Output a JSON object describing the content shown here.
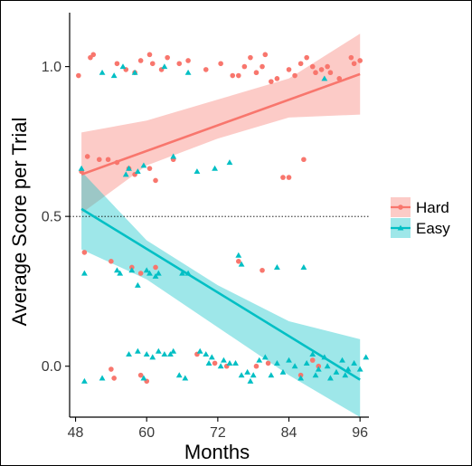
{
  "chart_data": {
    "type": "scatter",
    "xlabel": "Months",
    "ylabel": "Average Score per Trial",
    "xlim": [
      47,
      97.5
    ],
    "ylim": [
      -0.17,
      1.18
    ],
    "xticks": [
      48,
      60,
      72,
      84,
      96
    ],
    "xtick_labels": [
      "48",
      "60",
      "72",
      "84",
      "96"
    ],
    "yticks": [
      0.0,
      0.5,
      1.0
    ],
    "ytick_labels": [
      "0.0",
      "0.5",
      "1.0"
    ],
    "reference_line": {
      "y": 0.5,
      "style": "dotted"
    },
    "grid": false,
    "legend": {
      "position": "right"
    },
    "series": [
      {
        "name": "Hard",
        "color": "#F8766D",
        "band_color": "#F8766D",
        "marker": "circle",
        "fit": {
          "x": [
            49,
            96
          ],
          "y": [
            0.64,
            0.975
          ]
        },
        "band": {
          "x": [
            49,
            60,
            72,
            84,
            96
          ],
          "upper": [
            0.78,
            0.82,
            0.89,
            0.96,
            1.11
          ],
          "lower": [
            0.51,
            0.67,
            0.76,
            0.83,
            0.84
          ]
        },
        "points": [
          [
            48.5,
            0.97
          ],
          [
            50.5,
            1.03
          ],
          [
            51.0,
            1.04
          ],
          [
            55.0,
            1.01
          ],
          [
            56.5,
            0.99
          ],
          [
            58.0,
            0.98
          ],
          [
            59.0,
            1.02
          ],
          [
            60.5,
            1.04
          ],
          [
            61.0,
            1.01
          ],
          [
            62.5,
            0.99
          ],
          [
            63.5,
            1.03
          ],
          [
            65.5,
            1.01
          ],
          [
            67.0,
            1.02
          ],
          [
            70.0,
            0.99
          ],
          [
            72.5,
            1.01
          ],
          [
            74.5,
            0.97
          ],
          [
            75.5,
            0.97
          ],
          [
            76.5,
            1.0
          ],
          [
            77.5,
            1.03
          ],
          [
            78.5,
            0.98
          ],
          [
            79.5,
            1.0
          ],
          [
            80.0,
            1.04
          ],
          [
            81.0,
            0.95
          ],
          [
            82.0,
            0.96
          ],
          [
            84.0,
            0.99
          ],
          [
            85.0,
            0.97
          ],
          [
            86.0,
            1.01
          ],
          [
            87.0,
            1.03
          ],
          [
            88.0,
            1.0
          ],
          [
            88.5,
            0.98
          ],
          [
            89.5,
            0.99
          ],
          [
            90.5,
            1.0
          ],
          [
            91.0,
            0.98
          ],
          [
            92.5,
            0.96
          ],
          [
            94.5,
            1.03
          ],
          [
            95.0,
            1.01
          ],
          [
            96.0,
            1.02
          ],
          [
            49.0,
            0.65
          ],
          [
            50.0,
            0.7
          ],
          [
            52.0,
            0.69
          ],
          [
            53.5,
            0.69
          ],
          [
            55.0,
            0.68
          ],
          [
            57.0,
            0.66
          ],
          [
            58.0,
            0.64
          ],
          [
            60.5,
            0.66
          ],
          [
            61.5,
            0.62
          ],
          [
            64.5,
            0.69
          ],
          [
            83.0,
            0.63
          ],
          [
            84.0,
            0.63
          ],
          [
            86.5,
            0.69
          ],
          [
            49.5,
            0.38
          ],
          [
            54.0,
            0.35
          ],
          [
            57.5,
            0.33
          ],
          [
            59.0,
            0.31
          ],
          [
            61.5,
            0.33
          ],
          [
            75.5,
            0.35
          ],
          [
            79.5,
            0.32
          ],
          [
            54.0,
            -0.01
          ],
          [
            54.5,
            -0.04
          ],
          [
            59.0,
            -0.03
          ],
          [
            60.0,
            -0.05
          ],
          [
            68.5,
            0.04
          ],
          [
            71.5,
            0.01
          ],
          [
            73.5,
            0.0
          ],
          [
            78.5,
            0.0
          ],
          [
            80.5,
            0.01
          ],
          [
            86.0,
            -0.03
          ],
          [
            88.0,
            0.02
          ],
          [
            89.0,
            0.0
          ]
        ]
      },
      {
        "name": "Easy",
        "color": "#00BFC4",
        "band_color": "#00BFC4",
        "marker": "triangle",
        "fit": {
          "x": [
            49,
            96
          ],
          "y": [
            0.525,
            -0.045
          ]
        },
        "band": {
          "x": [
            49,
            60,
            72,
            84,
            96
          ],
          "upper": [
            0.65,
            0.42,
            0.27,
            0.15,
            0.09
          ],
          "lower": [
            0.39,
            0.29,
            0.13,
            -0.03,
            -0.17
          ]
        },
        "points": [
          [
            49.0,
            0.66
          ],
          [
            52.5,
            0.98
          ],
          [
            54.5,
            0.97
          ],
          [
            56.0,
            1.0
          ],
          [
            58.0,
            0.98
          ],
          [
            58.5,
            0.65
          ],
          [
            59.5,
            0.67
          ],
          [
            56.5,
            0.64
          ],
          [
            57.0,
            0.66
          ],
          [
            63.0,
            1.0
          ],
          [
            64.5,
            0.7
          ],
          [
            67.0,
            0.98
          ],
          [
            68.5,
            0.65
          ],
          [
            71.5,
            0.66
          ],
          [
            74.0,
            0.68
          ],
          [
            90.0,
            0.96
          ],
          [
            49.5,
            0.31
          ],
          [
            55.0,
            0.32
          ],
          [
            55.5,
            0.31
          ],
          [
            57.5,
            0.32
          ],
          [
            58.5,
            0.27
          ],
          [
            60.0,
            0.32
          ],
          [
            60.5,
            0.31
          ],
          [
            61.5,
            0.3
          ],
          [
            62.0,
            0.31
          ],
          [
            66.0,
            0.31
          ],
          [
            67.0,
            0.31
          ],
          [
            75.5,
            0.37
          ],
          [
            76.0,
            0.34
          ],
          [
            82.0,
            0.33
          ],
          [
            86.5,
            0.33
          ],
          [
            49.5,
            -0.05
          ],
          [
            52.5,
            -0.04
          ],
          [
            57.0,
            0.04
          ],
          [
            58.5,
            0.05
          ],
          [
            59.5,
            -0.04
          ],
          [
            60.0,
            0.04
          ],
          [
            61.0,
            0.03
          ],
          [
            62.0,
            0.05
          ],
          [
            63.0,
            0.04
          ],
          [
            64.0,
            0.04
          ],
          [
            64.5,
            0.05
          ],
          [
            65.5,
            -0.03
          ],
          [
            66.5,
            -0.04
          ],
          [
            69.0,
            0.05
          ],
          [
            70.0,
            0.04
          ],
          [
            70.5,
            0.01
          ],
          [
            71.0,
            0.03
          ],
          [
            72.5,
            0.0
          ],
          [
            73.0,
            0.02
          ],
          [
            74.0,
            0.01
          ],
          [
            75.0,
            0.01
          ],
          [
            76.0,
            -0.03
          ],
          [
            77.0,
            -0.02
          ],
          [
            77.5,
            -0.05
          ],
          [
            78.0,
            -0.03
          ],
          [
            79.0,
            0.02
          ],
          [
            80.0,
            0.03
          ],
          [
            81.0,
            -0.03
          ],
          [
            82.0,
            0.01
          ],
          [
            83.0,
            -0.02
          ],
          [
            84.0,
            0.02
          ],
          [
            85.0,
            0.0
          ],
          [
            86.0,
            -0.04
          ],
          [
            87.0,
            0.01
          ],
          [
            88.0,
            0.04
          ],
          [
            88.5,
            -0.03
          ],
          [
            89.0,
            -0.01
          ],
          [
            90.0,
            0.03
          ],
          [
            90.5,
            0.0
          ],
          [
            91.0,
            -0.04
          ],
          [
            92.0,
            -0.02
          ],
          [
            93.0,
            0.02
          ],
          [
            93.5,
            -0.03
          ],
          [
            94.0,
            -0.01
          ],
          [
            95.0,
            0.01
          ],
          [
            96.0,
            -0.01
          ],
          [
            97.0,
            0.03
          ]
        ]
      }
    ]
  }
}
